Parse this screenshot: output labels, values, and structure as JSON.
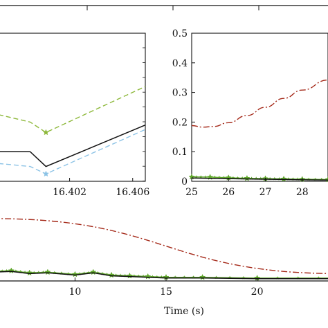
{
  "chart_data": [
    {
      "id": "main",
      "type": "line",
      "xlabel": "Time (s)",
      "xlim": [
        5.5,
        24.5
      ],
      "ylim": [
        0,
        0.1
      ],
      "x_ticks": [
        10,
        15,
        20
      ],
      "series": [
        {
          "style": "dashdot",
          "color": "#a52a1a",
          "x": [
            5.5,
            24.5
          ],
          "y": [
            0.085,
            0.01
          ]
        },
        {
          "style": "solid-star",
          "color": "#5ea62a",
          "x": [
            5.5,
            6.5,
            7.5,
            8.5,
            10,
            11,
            12,
            13,
            14,
            15,
            17,
            20,
            24.5
          ],
          "y": [
            0.013,
            0.014,
            0.011,
            0.012,
            0.009,
            0.012,
            0.008,
            0.007,
            0.006,
            0.005,
            0.005,
            0.004,
            0.004
          ]
        },
        {
          "style": "solid",
          "color": "#111111",
          "x": [
            5.5,
            6.5,
            7.5,
            8.5,
            10,
            11,
            12,
            13,
            14,
            15,
            17,
            20,
            24.5
          ],
          "y": [
            0.012,
            0.013,
            0.01,
            0.011,
            0.008,
            0.011,
            0.007,
            0.006,
            0.005,
            0.004,
            0.004,
            0.003,
            0.003
          ]
        }
      ]
    },
    {
      "id": "inset-left",
      "type": "line",
      "xlim": [
        16.3975,
        16.4068
      ],
      "ylim": [
        0,
        1
      ],
      "x_ticks": [
        16.402,
        16.406
      ],
      "x_tick_labels": [
        "16.402",
        "16.406"
      ],
      "series": [
        {
          "style": "dash-star",
          "color": "#8db83a",
          "x": [
            16.3975,
            16.3995,
            16.4005,
            16.4068
          ],
          "y": [
            0.45,
            0.4,
            0.33,
            0.64
          ]
        },
        {
          "style": "solid",
          "color": "#111111",
          "x": [
            16.3975,
            16.3995,
            16.4005,
            16.4068
          ],
          "y": [
            0.2,
            0.2,
            0.1,
            0.38
          ]
        },
        {
          "style": "dash-star",
          "color": "#8cc3e6",
          "x": [
            16.3975,
            16.3995,
            16.4005,
            16.4068
          ],
          "y": [
            0.12,
            0.1,
            0.05,
            0.35
          ]
        }
      ]
    },
    {
      "id": "inset-right",
      "type": "line",
      "xlim": [
        25,
        28.7
      ],
      "ylim": [
        0,
        0.5
      ],
      "x_ticks": [
        25,
        26,
        27,
        28
      ],
      "y_ticks": [
        0,
        0.1,
        0.2,
        0.3,
        0.4,
        0.5
      ],
      "y_tick_labels": [
        "0",
        "0.1",
        "0.2",
        "0.3",
        "0.4",
        "0.5"
      ],
      "series": [
        {
          "style": "dashdot",
          "color": "#a52a1a",
          "x": [
            25,
            25.3,
            25.6,
            26.0,
            26.5,
            27.0,
            27.5,
            28.0,
            28.7
          ],
          "y": [
            0.188,
            0.183,
            0.185,
            0.198,
            0.222,
            0.25,
            0.28,
            0.308,
            0.342
          ]
        },
        {
          "style": "solid-star",
          "color": "#5ea62a",
          "x": [
            25,
            25.5,
            26,
            26.5,
            27,
            27.5,
            28,
            28.7
          ],
          "y": [
            0.015,
            0.014,
            0.012,
            0.01,
            0.009,
            0.008,
            0.007,
            0.006
          ]
        },
        {
          "style": "solid",
          "color": "#111111",
          "x": [
            25,
            25.5,
            26,
            26.5,
            27,
            27.5,
            28,
            28.7
          ],
          "y": [
            0.011,
            0.01,
            0.009,
            0.008,
            0.007,
            0.006,
            0.005,
            0.004
          ]
        }
      ]
    }
  ]
}
